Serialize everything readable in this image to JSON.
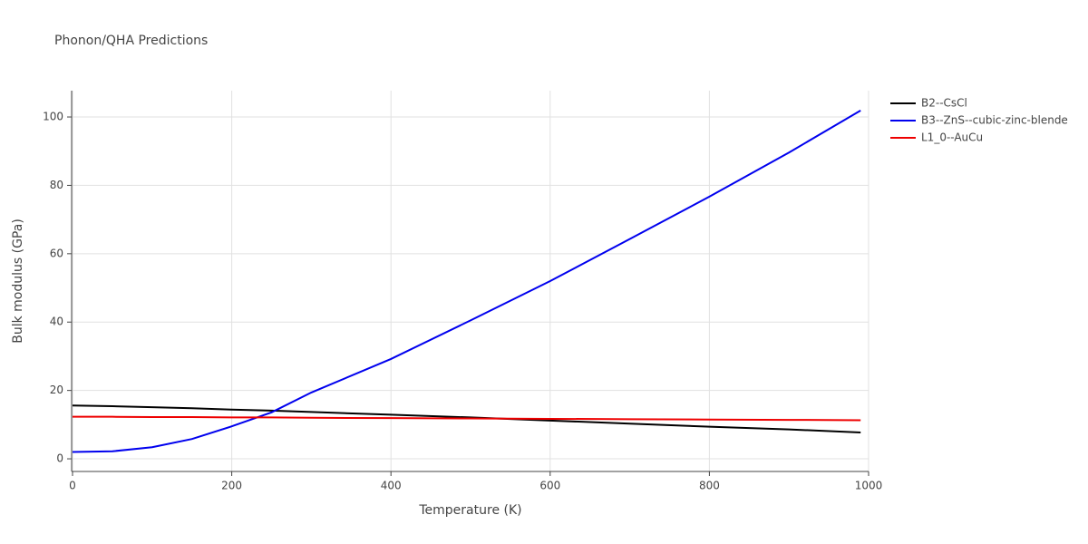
{
  "chart_data": {
    "type": "line",
    "title": "Phonon/QHA Predictions",
    "x_label": "Temperature (K)",
    "y_label": "Bulk modulus (GPa)",
    "x": [
      0,
      50,
      100,
      150,
      200,
      250,
      300,
      400,
      500,
      600,
      700,
      800,
      900,
      990
    ],
    "series": [
      {
        "name": "B2--CsCl",
        "color": "#000000",
        "values": [
          15.6,
          15.4,
          15.1,
          14.8,
          14.4,
          14.1,
          13.7,
          12.9,
          12.1,
          11.2,
          10.3,
          9.4,
          8.6,
          7.7
        ]
      },
      {
        "name": "B3--ZnS--cubic-zinc-blende",
        "color": "#0000ee",
        "values": [
          2.0,
          2.2,
          3.4,
          5.8,
          9.5,
          13.6,
          19.4,
          29.2,
          40.5,
          52.0,
          64.3,
          76.7,
          89.6,
          101.9
        ]
      },
      {
        "name": "L1_0--AuCu",
        "color": "#ee0000",
        "values": [
          12.3,
          12.3,
          12.2,
          12.2,
          12.1,
          12.1,
          12.0,
          11.9,
          11.8,
          11.7,
          11.6,
          11.5,
          11.4,
          11.3
        ]
      }
    ],
    "xlim": [
      0,
      1000
    ],
    "ylim": [
      -3.7,
      107.7
    ],
    "xticks": [
      0,
      200,
      400,
      600,
      800,
      1000
    ],
    "yticks": [
      0,
      20,
      40,
      60,
      80,
      100
    ],
    "grid": true,
    "legend": "right"
  }
}
